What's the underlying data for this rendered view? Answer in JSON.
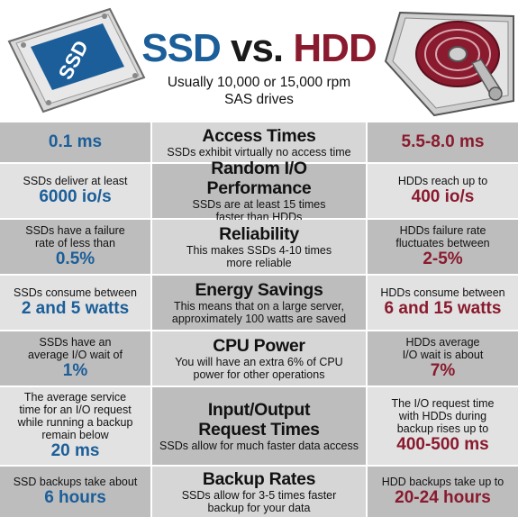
{
  "header": {
    "title_ssd": "SSD",
    "title_vs": "vs.",
    "title_hdd": "HDD",
    "subtitle_line1": "Usually 10,000 or 15,000 rpm",
    "subtitle_line2": "SAS drives",
    "ssd_label": "SSD"
  },
  "colors": {
    "ssd_blue": "#1b5e99",
    "hdd_red": "#8a1a2e",
    "row_dark": "#bdbdbd",
    "row_light": "#e2e2e2"
  },
  "rows": [
    {
      "topic": "Access Times",
      "desc": "SSDs exhibit virtually no access time",
      "ssd_note": "",
      "ssd_value": "0.1 ms",
      "hdd_note": "",
      "hdd_value": "5.5-8.0 ms"
    },
    {
      "topic": "Random I/O Performance",
      "desc": "SSDs are at least 15 times faster than HDDs",
      "ssd_note": "SSDs deliver at least",
      "ssd_value": "6000 io/s",
      "hdd_note": "HDDs reach up to",
      "hdd_value": "400 io/s"
    },
    {
      "topic": "Reliability",
      "desc": "This makes SSDs 4-10 times more reliable",
      "ssd_note": "SSDs have a failure rate of less than",
      "ssd_value": "0.5%",
      "hdd_note": "HDDs failure rate fluctuates between",
      "hdd_value": "2-5%"
    },
    {
      "topic": "Energy Savings",
      "desc": "This means that on a large server, approximately 100 watts are saved",
      "ssd_note": "SSDs consume between",
      "ssd_value": "2 and 5 watts",
      "hdd_note": "HDDs consume between",
      "hdd_value": "6 and 15 watts"
    },
    {
      "topic": "CPU Power",
      "desc": "You will have an extra 6% of CPU power for other operations",
      "ssd_note": "SSDs have an average I/O wait of",
      "ssd_value": "1%",
      "hdd_note": "HDDs average I/O wait is about",
      "hdd_value": "7%"
    },
    {
      "topic": "Input/Output Request Times",
      "desc": "SSDs allow for much faster data access",
      "ssd_note": "The average service time for an I/O request while running a backup remain below",
      "ssd_value": "20 ms",
      "hdd_note": "The I/O request time with HDDs during backup rises up to",
      "hdd_value": "400-500 ms"
    },
    {
      "topic": "Backup Rates",
      "desc": "SSDs allow for 3-5 times faster backup for your data",
      "ssd_note": "SSD backups take about",
      "ssd_value": "6 hours",
      "hdd_note": "HDD backups take up to",
      "hdd_value": "20-24 hours"
    }
  ]
}
